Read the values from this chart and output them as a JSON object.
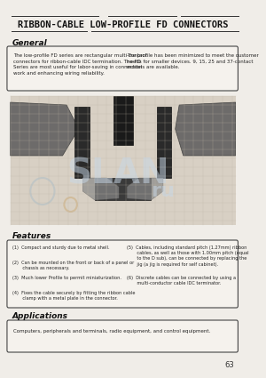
{
  "title": "RIBBON-CABLE LOW-PROFILE FD CONNECTORS",
  "bg_color": "#f0ede8",
  "page_bg": "#e8e4de",
  "section_general": "General",
  "general_text_left": "The low-profile FD series are rectangular multi-contact\nconnectors for ribbon-cable IDC termination. The FD\nSeries are most useful for labor-saving in connection\nwork and enhancing wiring reliability.",
  "general_text_right": "The profile has been minimized to meet the customer\nneeds for smaller devices. 9, 15, 25 and 37-contact\nmodels are available.",
  "section_features": "Features",
  "features_left": [
    "(1)  Compact and sturdy due to metal shell.",
    "(2)  Can be mounted on the front or back of a panel or\n       chassis as necessary.",
    "(3)  Much lower Profile to permit miniaturization.",
    "(4)  Fixes the cable securely by fitting the ribbon cable\n       clamp with a metal plate in the connector."
  ],
  "features_right": [
    "(5)  Cables, including standard pitch (1.27mm) ribbon\n       cables, as well as those with 1.00mm pitch (equal\n       to the D sub), can be connected by replacing the\n       jig (a jig is required for self cabinet).",
    "(6)  Discrete cables can be connected by using a\n       multi-conductor cable IDC terminator."
  ],
  "section_applications": "Applications",
  "applications_text": "Computers, peripherals and terminals, radio equipment, and control equipment.",
  "page_number": "63",
  "line_color": "#333333",
  "watermark_color": "#c8d8e8",
  "box_border_color": "#444444"
}
